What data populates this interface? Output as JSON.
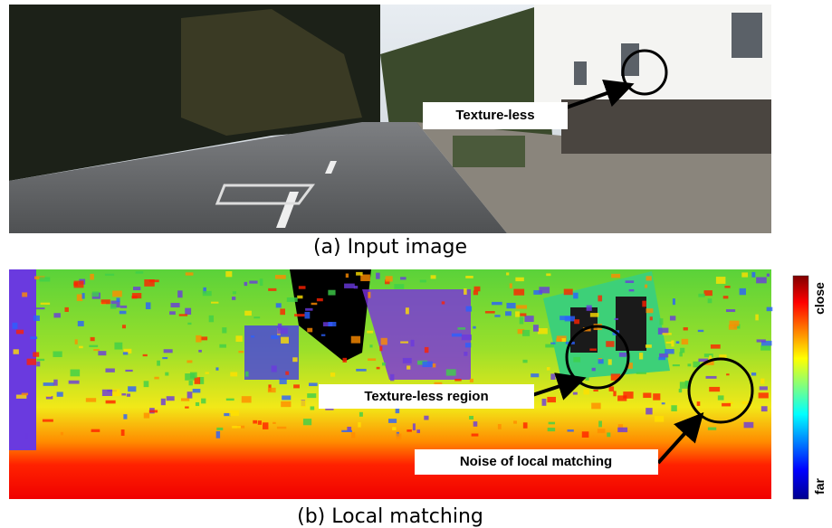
{
  "figure": {
    "panels": [
      {
        "caption": "(a) Input image",
        "annotations": [
          "Texture-less"
        ]
      },
      {
        "caption": "(b) Local matching",
        "annotations": [
          "Texture-less region",
          "Noise of local matching"
        ]
      }
    ],
    "colorbar": {
      "top_label": "close",
      "bottom_label": "far"
    }
  }
}
